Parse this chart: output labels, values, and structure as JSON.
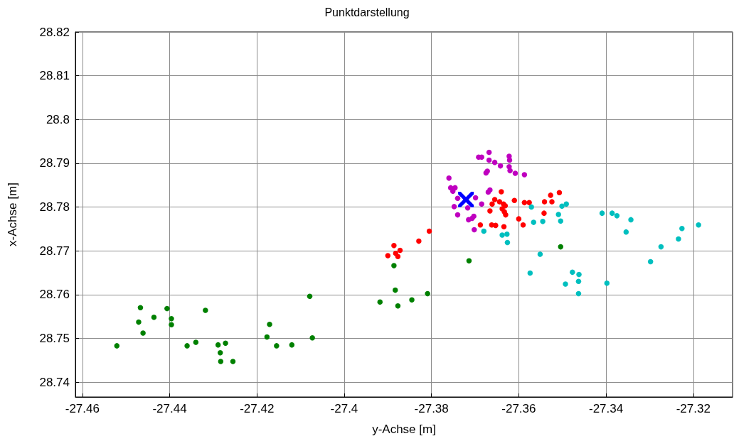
{
  "chart_data": {
    "type": "scatter",
    "title": "Punktdarstellung",
    "xlabel": "y-Achse [m]",
    "ylabel": "x-Achse [m]",
    "xlim": [
      -27.4616,
      -27.311
    ],
    "xticks": [
      -27.46,
      -27.44,
      -27.42,
      -27.4,
      -27.38,
      -27.36,
      -27.34,
      -27.32
    ],
    "ylim": [
      28.7366,
      28.82
    ],
    "yticks": [
      28.74,
      28.75,
      28.76,
      28.77,
      28.78,
      28.79,
      28.8,
      28.81,
      28.82
    ],
    "grid": true,
    "marker": "circle",
    "series": [
      {
        "color": "#008000",
        "x": [
          -27.4521,
          -27.4467,
          -27.4471,
          -27.4461,
          -27.4436,
          -27.4406,
          -27.4396,
          -27.4396,
          -27.436,
          -27.434,
          -27.4318,
          -27.4289,
          -27.4272,
          -27.4284,
          -27.4283,
          -27.4255,
          -27.4171,
          -27.4177,
          -27.4155,
          -27.412,
          -27.4079,
          -27.4073,
          -27.3886,
          -27.3883,
          -27.3918,
          -27.3877,
          -27.3845,
          -27.3809,
          -27.3714,
          -27.3504
        ],
        "values": [
          28.7483,
          28.757,
          28.7537,
          28.7512,
          28.7548,
          28.7568,
          28.7545,
          28.7531,
          28.7483,
          28.7491,
          28.7564,
          28.7485,
          28.7489,
          28.7467,
          28.7447,
          28.7447,
          28.7532,
          28.7503,
          28.7483,
          28.7485,
          28.7596,
          28.7501,
          28.7666,
          28.761,
          28.7583,
          28.7574,
          28.7588,
          28.7602,
          28.7677,
          28.7709
        ]
      },
      {
        "color": "#ff0000",
        "x": [
          -27.3805,
          -27.3829,
          -27.3886,
          -27.3872,
          -27.3882,
          -27.39,
          -27.3877,
          -27.364,
          -27.3655,
          -27.3661,
          -27.3644,
          -27.3635,
          -27.3631,
          -27.3638,
          -27.3633,
          -27.363,
          -27.3666,
          -27.361,
          -27.3587,
          -27.3576,
          -27.36,
          -27.359,
          -27.3634,
          -27.3662,
          -27.3653,
          -27.3688,
          -27.3541,
          -27.3527,
          -27.3524,
          -27.3507,
          -27.3542
        ],
        "values": [
          28.7745,
          28.7722,
          28.7712,
          28.7701,
          28.7694,
          28.7689,
          28.7687,
          28.7835,
          28.7817,
          28.7807,
          28.7812,
          28.7807,
          28.7803,
          28.7796,
          28.7789,
          28.7782,
          28.7791,
          28.7815,
          28.781,
          28.781,
          28.7773,
          28.7759,
          28.7755,
          28.7759,
          28.7758,
          28.7759,
          28.7812,
          28.7827,
          28.7812,
          28.7833,
          28.7786
        ]
      },
      {
        "color": "#bf00bf",
        "x": [
          -27.3668,
          -27.3692,
          -27.3685,
          -27.3668,
          -27.3655,
          -27.3642,
          -27.3622,
          -27.3621,
          -27.3622,
          -27.362,
          -27.3608,
          -27.3587,
          -27.3672,
          -27.3675,
          -27.376,
          -27.3756,
          -27.3746,
          -27.3751,
          -27.3666,
          -27.367,
          -27.374,
          -27.3699,
          -27.3685,
          -27.3748,
          -27.3717,
          -27.374,
          -27.3703,
          -27.3707,
          -27.3715,
          -27.3702
        ],
        "values": [
          28.7925,
          28.7914,
          28.7914,
          28.7907,
          28.7902,
          28.7894,
          28.7916,
          28.7907,
          28.7892,
          28.7883,
          28.7877,
          28.7874,
          28.7882,
          28.7878,
          28.7866,
          28.7844,
          28.7844,
          28.7836,
          28.7839,
          28.7834,
          28.782,
          28.7821,
          28.7807,
          28.7801,
          28.7798,
          28.7782,
          28.7779,
          28.7774,
          28.7771,
          28.7748
        ]
      },
      {
        "color": "#00bfbf",
        "x": [
          -27.3571,
          -27.3566,
          -27.3545,
          -27.368,
          -27.3638,
          -27.3627,
          -27.3626,
          -27.3501,
          -27.3491,
          -27.3509,
          -27.3504,
          -27.3551,
          -27.3574,
          -27.3477,
          -27.3462,
          -27.3463,
          -27.3493,
          -27.3463,
          -27.3409,
          -27.3386,
          -27.3375,
          -27.3343,
          -27.3354,
          -27.3274,
          -27.3298,
          -27.3234,
          -27.3226,
          -27.3188,
          -27.3398
        ],
        "values": [
          28.78,
          28.7765,
          28.7767,
          28.7745,
          28.7736,
          28.7738,
          28.7719,
          28.7802,
          28.7807,
          28.7783,
          28.7768,
          28.7692,
          28.7649,
          28.7651,
          28.7646,
          28.763,
          28.7624,
          28.7602,
          28.7786,
          28.7786,
          28.778,
          28.7771,
          28.7743,
          28.7709,
          28.7675,
          28.7727,
          28.7751,
          28.7759,
          28.7626
        ]
      },
      {
        "color": "#0000ff",
        "marker": "cross",
        "x": [
          -27.3721
        ],
        "values": [
          28.7817
        ]
      }
    ]
  }
}
